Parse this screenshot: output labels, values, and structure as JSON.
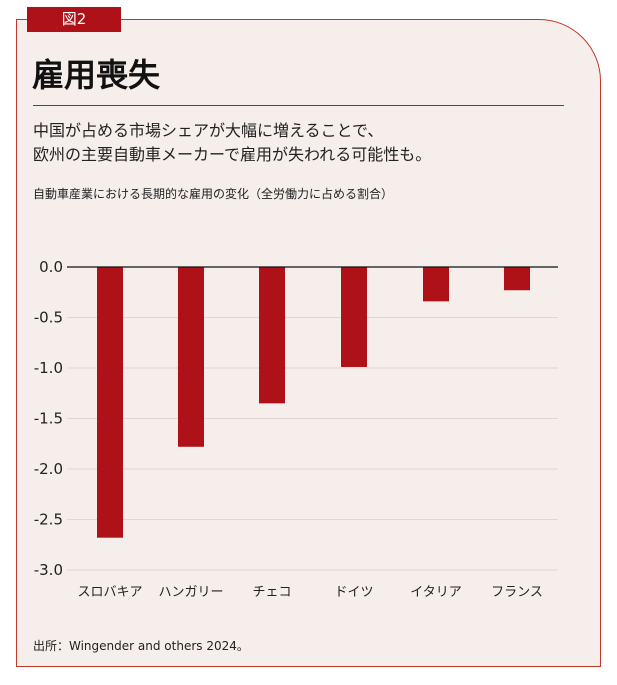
{
  "tag": "図2",
  "title": "雇用喪失",
  "subtitle": [
    "中国が占める市場シェアが大幅に増えることで、",
    "欧州の主要自動車メーカーで雇用が失われる可能性も。"
  ],
  "source": "出所：Wingender and others 2024。",
  "chart_data": {
    "type": "bar",
    "title": "自動車産業における長期的な雇用の変化（全労働力に占める割合）",
    "categories": [
      "スロバキア",
      "ハンガリー",
      "チェコ",
      "ドイツ",
      "イタリア",
      "フランス"
    ],
    "values": [
      -2.68,
      -1.78,
      -1.35,
      -0.99,
      -0.34,
      -0.23
    ],
    "ylim": [
      -3.0,
      0.0
    ],
    "yticks": [
      "0.0",
      "-0.5",
      "-1.0",
      "-1.5",
      "-2.0",
      "-2.5",
      "-3.0"
    ],
    "grid": true,
    "bar_color": "#ae1218"
  }
}
